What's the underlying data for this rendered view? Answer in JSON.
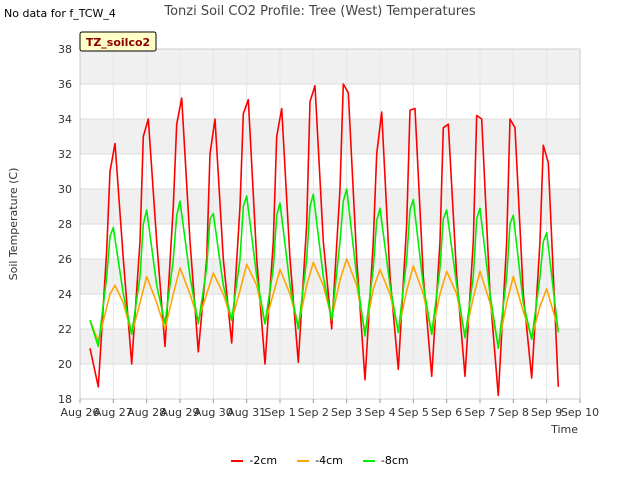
{
  "nodata_text": "No data for f_TCW_4",
  "title": "Tonzi Soil CO2 Profile: Tree (West) Temperatures",
  "badge": "TZ_soilco2",
  "chart_data": {
    "type": "line",
    "title": "Tonzi Soil CO2 Profile: Tree (West) Temperatures",
    "xlabel": "Time",
    "ylabel": "Soil Temperature (C)",
    "ylim": [
      18,
      38
    ],
    "yticks": [
      18,
      20,
      22,
      24,
      26,
      28,
      30,
      32,
      34,
      36,
      38
    ],
    "xlim": [
      0,
      15
    ],
    "xticks": [
      {
        "x": 0,
        "label": "Aug 26"
      },
      {
        "x": 1,
        "label": "Aug 27"
      },
      {
        "x": 2,
        "label": "Aug 28"
      },
      {
        "x": 3,
        "label": "Aug 29"
      },
      {
        "x": 4,
        "label": "Aug 30"
      },
      {
        "x": 5,
        "label": "Aug 31"
      },
      {
        "x": 6,
        "label": "Sep 1"
      },
      {
        "x": 7,
        "label": "Sep 2"
      },
      {
        "x": 8,
        "label": "Sep 3"
      },
      {
        "x": 9,
        "label": "Sep 4"
      },
      {
        "x": 10,
        "label": "Sep 5"
      },
      {
        "x": 11,
        "label": "Sep 6"
      },
      {
        "x": 12,
        "label": "Sep 7"
      },
      {
        "x": 13,
        "label": "Sep 8"
      },
      {
        "x": 14,
        "label": "Sep 9"
      },
      {
        "x": 15,
        "label": "Sep 10"
      }
    ],
    "grid": true,
    "legend_position": "bottom",
    "series": [
      {
        "name": "-2cm",
        "color": "#ff0000",
        "x": [
          0.3,
          0.55,
          0.8,
          0.9,
          1.05,
          1.3,
          1.55,
          1.8,
          1.9,
          2.05,
          2.3,
          2.55,
          2.8,
          2.9,
          3.05,
          3.3,
          3.55,
          3.8,
          3.9,
          4.05,
          4.3,
          4.55,
          4.8,
          4.9,
          5.05,
          5.3,
          5.55,
          5.8,
          5.9,
          6.05,
          6.3,
          6.55,
          6.8,
          6.9,
          7.05,
          7.3,
          7.55,
          7.8,
          7.9,
          8.05,
          8.3,
          8.55,
          8.8,
          8.9,
          9.05,
          9.3,
          9.55,
          9.8,
          9.9,
          10.05,
          10.3,
          10.55,
          10.8,
          10.9,
          11.05,
          11.3,
          11.55,
          11.8,
          11.9,
          12.05,
          12.3,
          12.55,
          12.8,
          12.9,
          13.05,
          13.3,
          13.55,
          13.8,
          13.9,
          14.05,
          14.35
        ],
        "y": [
          20.9,
          18.7,
          26.5,
          31.0,
          32.6,
          26.0,
          20.0,
          27.0,
          33.0,
          34.0,
          27.0,
          21.0,
          29.0,
          33.7,
          35.2,
          27.0,
          20.7,
          26.0,
          32.0,
          34.0,
          26.0,
          21.2,
          29.0,
          34.3,
          35.1,
          26.0,
          20.0,
          27.0,
          33.0,
          34.6,
          26.0,
          20.1,
          28.0,
          35.0,
          35.9,
          27.0,
          22.0,
          30.0,
          36.0,
          35.5,
          26.0,
          19.1,
          27.0,
          32.0,
          34.4,
          25.0,
          19.7,
          28.0,
          34.5,
          34.6,
          25.0,
          19.3,
          27.0,
          33.5,
          33.7,
          25.0,
          19.3,
          27.0,
          34.2,
          34.0,
          24.0,
          18.2,
          27.0,
          34.0,
          33.5,
          24.0,
          19.2,
          27.0,
          32.5,
          31.5,
          18.7
        ]
      },
      {
        "name": "-4cm",
        "color": "#ffa500",
        "x": [
          0.3,
          0.55,
          0.9,
          1.05,
          1.3,
          1.55,
          1.8,
          2.0,
          2.3,
          2.55,
          2.8,
          3.0,
          3.3,
          3.55,
          3.8,
          4.0,
          4.3,
          4.55,
          4.8,
          5.0,
          5.3,
          5.55,
          5.8,
          6.0,
          6.3,
          6.55,
          6.8,
          7.0,
          7.3,
          7.55,
          7.8,
          8.0,
          8.3,
          8.55,
          8.8,
          9.0,
          9.3,
          9.55,
          9.8,
          10.0,
          10.3,
          10.55,
          10.8,
          11.0,
          11.3,
          11.55,
          11.8,
          12.0,
          12.3,
          12.55,
          12.8,
          13.0,
          13.3,
          13.55,
          13.8,
          14.0,
          14.35
        ],
        "y": [
          22.5,
          21.3,
          24.0,
          24.5,
          23.5,
          21.7,
          23.5,
          25.0,
          23.5,
          22.0,
          24.0,
          25.5,
          24.0,
          22.5,
          24.0,
          25.2,
          24.0,
          22.5,
          24.2,
          25.7,
          24.5,
          22.3,
          24.0,
          25.4,
          24.0,
          22.2,
          24.5,
          25.8,
          24.5,
          22.6,
          24.8,
          26.0,
          24.5,
          21.8,
          24.3,
          25.4,
          24.0,
          21.9,
          24.2,
          25.6,
          24.0,
          21.7,
          24.0,
          25.3,
          24.0,
          21.6,
          23.8,
          25.3,
          23.5,
          21.0,
          23.5,
          25.0,
          23.0,
          21.5,
          23.3,
          24.3,
          22.0
        ]
      },
      {
        "name": "-8cm",
        "color": "#00ee00",
        "x": [
          0.3,
          0.55,
          0.8,
          0.9,
          1.0,
          1.3,
          1.55,
          1.8,
          1.9,
          2.0,
          2.3,
          2.55,
          2.8,
          2.9,
          3.0,
          3.3,
          3.55,
          3.8,
          3.9,
          4.0,
          4.3,
          4.55,
          4.8,
          4.9,
          5.0,
          5.3,
          5.55,
          5.8,
          5.9,
          6.0,
          6.3,
          6.55,
          6.8,
          6.9,
          7.0,
          7.3,
          7.55,
          7.8,
          7.9,
          8.0,
          8.3,
          8.55,
          8.8,
          8.9,
          9.0,
          9.3,
          9.55,
          9.8,
          9.9,
          10.0,
          10.3,
          10.55,
          10.8,
          10.9,
          11.0,
          11.3,
          11.55,
          11.8,
          11.9,
          12.0,
          12.3,
          12.55,
          12.8,
          12.9,
          13.0,
          13.3,
          13.55,
          13.8,
          13.9,
          14.0,
          14.35
        ],
        "y": [
          22.5,
          21.0,
          25.0,
          27.3,
          27.8,
          24.0,
          21.7,
          25.0,
          28.0,
          28.8,
          24.5,
          22.3,
          26.0,
          28.5,
          29.3,
          25.0,
          22.3,
          25.5,
          28.3,
          28.6,
          24.5,
          22.5,
          26.0,
          29.0,
          29.6,
          25.0,
          22.3,
          25.5,
          28.5,
          29.2,
          24.5,
          22.0,
          26.0,
          29.0,
          29.7,
          25.0,
          22.5,
          27.0,
          29.3,
          30.0,
          25.0,
          21.6,
          25.5,
          28.2,
          28.9,
          24.5,
          21.8,
          26.0,
          28.8,
          29.4,
          24.5,
          21.7,
          25.5,
          28.3,
          28.8,
          24.5,
          21.5,
          25.0,
          28.3,
          28.9,
          24.0,
          20.9,
          25.0,
          28.0,
          28.5,
          23.5,
          21.4,
          25.0,
          27.0,
          27.5,
          21.8
        ]
      }
    ]
  }
}
